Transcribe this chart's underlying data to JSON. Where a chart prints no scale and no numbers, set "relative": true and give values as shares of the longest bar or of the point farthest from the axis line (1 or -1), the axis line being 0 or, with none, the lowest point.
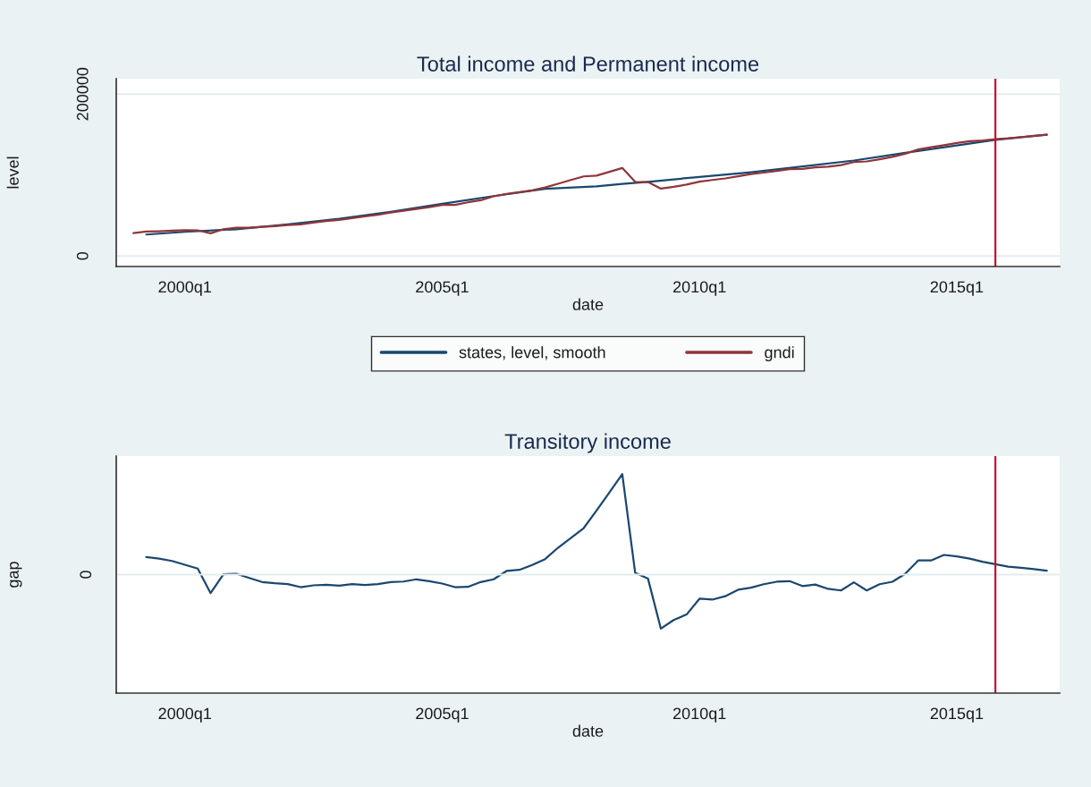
{
  "chart_data": [
    {
      "type": "line",
      "title": "Total income and Permanent income",
      "xlabel": "date",
      "ylabel": "level",
      "x": [
        "1999-01",
        "1999-04",
        "1999-07",
        "1999-10",
        "2000-01",
        "2000-04",
        "2000-07",
        "2000-10",
        "2001-01",
        "2001-04",
        "2001-07",
        "2001-10",
        "2002-01",
        "2002-04",
        "2002-07",
        "2002-10",
        "2003-01",
        "2003-04",
        "2003-07",
        "2003-10",
        "2004-01",
        "2004-04",
        "2004-07",
        "2004-10",
        "2005-01",
        "2005-04",
        "2005-07",
        "2005-10",
        "2006-01",
        "2006-04",
        "2006-07",
        "2006-10",
        "2007-01",
        "2007-04",
        "2007-07",
        "2007-10",
        "2008-01",
        "2008-04",
        "2008-07",
        "2008-10",
        "2009-01",
        "2009-04",
        "2009-07",
        "2009-10",
        "2010-01",
        "2010-04",
        "2010-07",
        "2010-10",
        "2011-01",
        "2011-04",
        "2011-07",
        "2011-10",
        "2012-01",
        "2012-04",
        "2012-07",
        "2012-10",
        "2013-01",
        "2013-04",
        "2013-07",
        "2013-10",
        "2014-01",
        "2014-04",
        "2014-07",
        "2014-10",
        "2015-01",
        "2015-04",
        "2015-07",
        "2015-10",
        "2016-01",
        "2016-04",
        "2016-07",
        "2016-10"
      ],
      "series": [
        {
          "name": "states, level, smooth",
          "color": "#1a476f",
          "x": [
            "1999-04",
            "2000-01",
            "2001-01",
            "2002-01",
            "2003-01",
            "2004-01",
            "2005-01",
            "2006-01",
            "2007-01",
            "2008-01",
            "2008-07",
            "2009-01",
            "2010-01",
            "2011-01",
            "2012-01",
            "2013-01",
            "2014-01",
            "2015-01",
            "2015-10",
            "2016-10"
          ],
          "values": [
            26500,
            29800,
            33100,
            39000,
            46000,
            54500,
            64400,
            74000,
            82900,
            86100,
            89000,
            91600,
            97700,
            103400,
            110500,
            117900,
            127400,
            136600,
            143400,
            149900
          ]
        },
        {
          "name": "gndi",
          "color": "#90353b",
          "values": [
            28400,
            30200,
            30600,
            31300,
            32000,
            31700,
            28000,
            33100,
            35000,
            35000,
            36100,
            36800,
            38300,
            39000,
            41200,
            43100,
            44600,
            46800,
            49000,
            50800,
            53800,
            56000,
            58200,
            60400,
            63000,
            63000,
            66300,
            68800,
            73700,
            76600,
            78800,
            81000,
            84700,
            89200,
            93900,
            98300,
            99200,
            103900,
            108700,
            91600,
            91300,
            83200,
            85500,
            88200,
            91900,
            93900,
            95800,
            98500,
            101100,
            103000,
            105000,
            107200,
            107600,
            109500,
            110300,
            112200,
            116000,
            116800,
            119500,
            122500,
            126300,
            131600,
            134300,
            136900,
            139600,
            141900,
            142700,
            144200,
            145300,
            146900,
            148400,
            149900
          ]
        }
      ],
      "xlim": [
        "1998-09",
        "2017-01"
      ],
      "xticks": [
        {
          "value": "2000-01",
          "label": "2000q1"
        },
        {
          "value": "2005-01",
          "label": "2005q1"
        },
        {
          "value": "2010-01",
          "label": "2010q1"
        },
        {
          "value": "2015-01",
          "label": "2015q1"
        }
      ],
      "ylim": [
        -13000,
        219000
      ],
      "yticks": [
        0,
        200000
      ],
      "grid": "y",
      "legend": "bottom",
      "ref_lines": [
        {
          "axis": "x",
          "value": "2015-10",
          "color": "#c8102e"
        }
      ]
    },
    {
      "type": "line",
      "title": "Transitory income",
      "xlabel": "date",
      "ylabel": "gap",
      "relative": true,
      "x": [
        "1999-04",
        "1999-07",
        "1999-10",
        "2000-01",
        "2000-04",
        "2000-07",
        "2000-10",
        "2001-01",
        "2001-04",
        "2001-07",
        "2001-10",
        "2002-01",
        "2002-04",
        "2002-07",
        "2002-10",
        "2003-01",
        "2003-04",
        "2003-07",
        "2003-10",
        "2004-01",
        "2004-04",
        "2004-07",
        "2004-10",
        "2005-01",
        "2005-04",
        "2005-07",
        "2005-10",
        "2006-01",
        "2006-04",
        "2006-07",
        "2006-10",
        "2007-01",
        "2007-04",
        "2007-07",
        "2007-10",
        "2008-01",
        "2008-04",
        "2008-07",
        "2008-10",
        "2009-01",
        "2009-04",
        "2009-07",
        "2009-10",
        "2010-01",
        "2010-04",
        "2010-07",
        "2010-10",
        "2011-01",
        "2011-04",
        "2011-07",
        "2011-10",
        "2012-01",
        "2012-04",
        "2012-07",
        "2012-10",
        "2013-01",
        "2013-04",
        "2013-07",
        "2013-10",
        "2014-01",
        "2014-04",
        "2014-07",
        "2014-10",
        "2015-01",
        "2015-04",
        "2015-07",
        "2015-10",
        "2016-01",
        "2016-04",
        "2016-07",
        "2016-10"
      ],
      "series": [
        {
          "color": "#1a476f",
          "values": [
            0.175,
            0.16,
            0.136,
            0.098,
            0.06,
            -0.184,
            0.003,
            0.009,
            -0.033,
            -0.074,
            -0.086,
            -0.095,
            -0.125,
            -0.107,
            -0.101,
            -0.11,
            -0.095,
            -0.104,
            -0.095,
            -0.074,
            -0.069,
            -0.047,
            -0.065,
            -0.089,
            -0.125,
            -0.122,
            -0.074,
            -0.047,
            0.036,
            0.047,
            0.095,
            0.154,
            0.267,
            0.365,
            0.463,
            0.638,
            0.819,
            1.0,
            0.018,
            -0.041,
            -0.538,
            -0.452,
            -0.397,
            -0.24,
            -0.249,
            -0.215,
            -0.151,
            -0.13,
            -0.096,
            -0.071,
            -0.065,
            -0.114,
            -0.099,
            -0.142,
            -0.158,
            -0.077,
            -0.158,
            -0.096,
            -0.071,
            0.009,
            0.141,
            0.141,
            0.196,
            0.181,
            0.159,
            0.128,
            0.104,
            0.079,
            0.067,
            0.054,
            0.039
          ]
        }
      ],
      "xlim": [
        "1998-09",
        "2017-01"
      ],
      "xticks": [
        {
          "value": "2000-01",
          "label": "2000q1"
        },
        {
          "value": "2005-01",
          "label": "2005q1"
        },
        {
          "value": "2010-01",
          "label": "2010q1"
        },
        {
          "value": "2015-01",
          "label": "2015q1"
        }
      ],
      "annotations": [
        "0"
      ],
      "ref_lines": [
        {
          "axis": "y",
          "value": 0,
          "color": "#e3ecee"
        },
        {
          "axis": "x",
          "value": "2015-10",
          "color": "#c8102e"
        }
      ]
    }
  ]
}
